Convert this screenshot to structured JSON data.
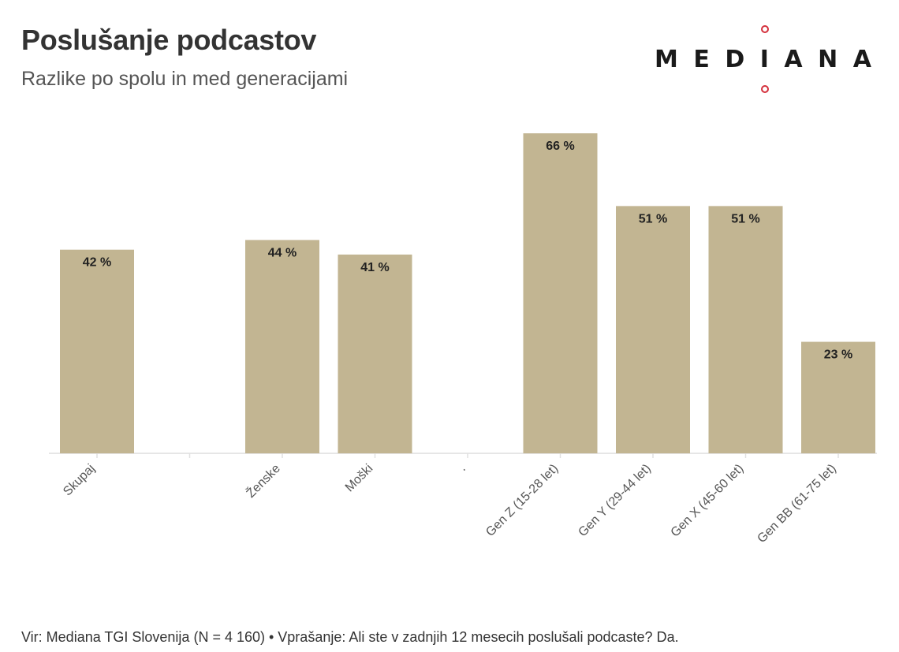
{
  "header": {
    "title": "Poslušanje podcastov",
    "subtitle": "Razlike po spolu in med generacijami"
  },
  "logo": {
    "text": "MEDIANA",
    "accent_color": "#d4303c"
  },
  "chart_data": {
    "type": "bar",
    "categories": [
      "Skupaj",
      "",
      "Ženske",
      "Moški",
      ".",
      "Gen Z (15-28 let)",
      "Gen Y (29-44 let)",
      "Gen X (45-60 let)",
      "Gen BB (61-75 let)"
    ],
    "values": [
      42,
      null,
      44,
      41,
      null,
      66,
      51,
      51,
      23
    ],
    "value_labels": [
      "42 %",
      "",
      "44 %",
      "41 %",
      "",
      "66 %",
      "51 %",
      "51 %",
      "23 %"
    ],
    "bar_color": "#c2b592",
    "ylim": [
      0,
      100
    ],
    "grid": false,
    "legend": "none"
  },
  "footer": {
    "source": "Vir: Mediana TGI Slovenija (N = 4 160) • Vprašanje: Ali ste v zadnjih 12 mesecih poslušali podcaste? Da."
  }
}
